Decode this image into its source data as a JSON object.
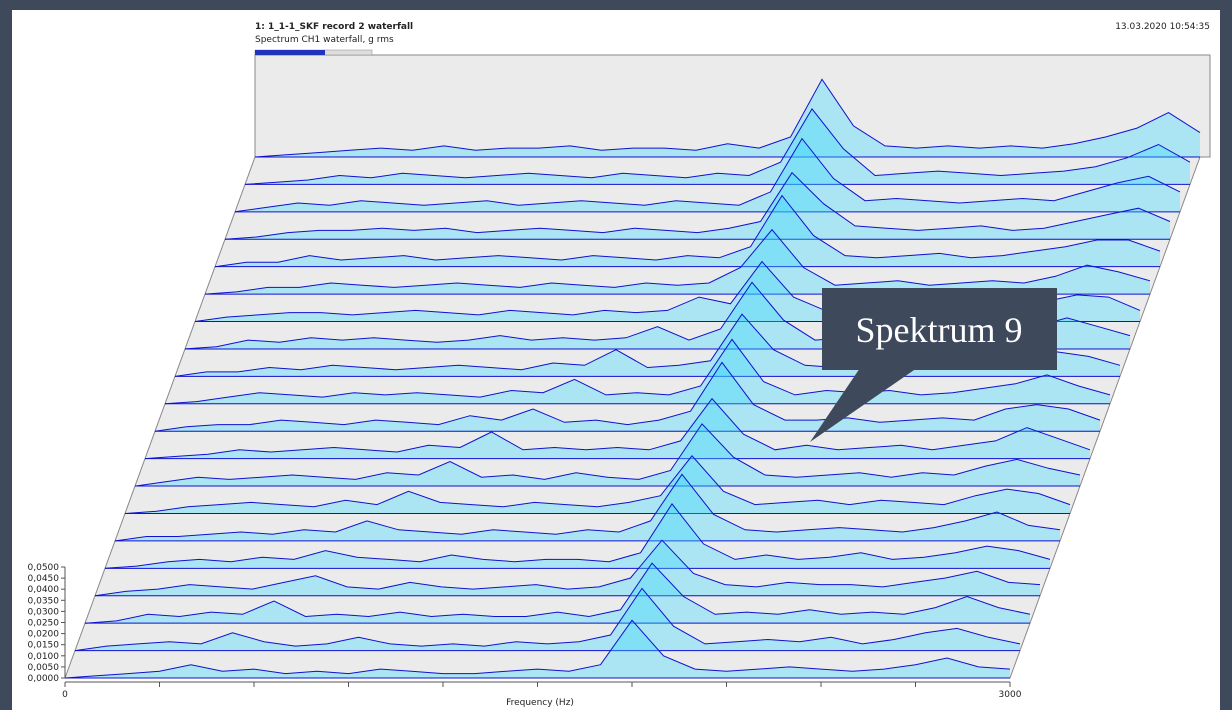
{
  "chart_data": {
    "type": "waterfall",
    "title": "1: 1_1-1_SKF record 2 waterfall",
    "subtitle": "Spectrum CH1 waterfall, g rms",
    "timestamp": "13.03.2020 10:54:35",
    "x_label": "Frequency (Hz)",
    "annotation": "Spektrum 9",
    "x": [
      0,
      100,
      200,
      300,
      400,
      500,
      600,
      700,
      800,
      900,
      1000,
      1100,
      1200,
      1300,
      1400,
      1500,
      1600,
      1700,
      1800,
      1900,
      2000,
      2100,
      2200,
      2300,
      2400,
      2500,
      2600,
      2700,
      2800,
      2900,
      3000
    ],
    "xlim": [
      0,
      3000
    ],
    "xticks": [
      0,
      3000
    ],
    "xticks_minor": [
      300,
      600,
      900,
      1200,
      1500,
      1800,
      2100,
      2400,
      2700
    ],
    "ylim": [
      0,
      0.05
    ],
    "yticks": [
      {
        "value": 0,
        "label": "0,0000"
      },
      {
        "value": 0.005,
        "label": "0,0050"
      },
      {
        "value": 0.01,
        "label": "0,0100"
      },
      {
        "value": 0.015,
        "label": "0,0150"
      },
      {
        "value": 0.02,
        "label": "0,0200"
      },
      {
        "value": 0.025,
        "label": "0,0250"
      },
      {
        "value": 0.03,
        "label": "0,0300"
      },
      {
        "value": 0.035,
        "label": "0,0350"
      },
      {
        "value": 0.04,
        "label": "0,0400"
      },
      {
        "value": 0.045,
        "label": "0,0450"
      },
      {
        "value": 0.05,
        "label": "0,0500"
      }
    ],
    "fill_color": "#33d6ff",
    "series": [
      {
        "color": "#1010d0",
        "values": [
          0,
          0.001,
          0.002,
          0.003,
          0.006,
          0.003,
          0.004,
          0.002,
          0.003,
          0.002,
          0.004,
          0.003,
          0.002,
          0.002,
          0.003,
          0.004,
          0.003,
          0.006,
          0.026,
          0.01,
          0.004,
          0.003,
          0.004,
          0.005,
          0.004,
          0.003,
          0.004,
          0.006,
          0.009,
          0.005,
          0.004
        ]
      },
      {
        "color": "#1010d0",
        "values": [
          0,
          0.002,
          0.003,
          0.004,
          0.003,
          0.008,
          0.004,
          0.002,
          0.003,
          0.006,
          0.003,
          0.002,
          0.003,
          0.002,
          0.004,
          0.003,
          0.004,
          0.007,
          0.028,
          0.011,
          0.003,
          0.004,
          0.005,
          0.004,
          0.006,
          0.003,
          0.005,
          0.008,
          0.01,
          0.006,
          0.003
        ]
      },
      {
        "color": "#1010d0",
        "values": [
          0,
          0.001,
          0.004,
          0.003,
          0.005,
          0.004,
          0.01,
          0.003,
          0.004,
          0.003,
          0.005,
          0.003,
          0.004,
          0.003,
          0.003,
          0.005,
          0.003,
          0.006,
          0.027,
          0.012,
          0.004,
          0.005,
          0.004,
          0.006,
          0.004,
          0.005,
          0.004,
          0.007,
          0.012,
          0.007,
          0.004
        ]
      },
      {
        "color": "#1010d0",
        "values": [
          0,
          0.002,
          0.003,
          0.005,
          0.004,
          0.003,
          0.006,
          0.009,
          0.004,
          0.003,
          0.006,
          0.004,
          0.003,
          0.004,
          0.005,
          0.003,
          0.004,
          0.008,
          0.025,
          0.01,
          0.005,
          0.004,
          0.006,
          0.005,
          0.005,
          0.004,
          0.006,
          0.008,
          0.011,
          0.006,
          0.005
        ]
      },
      {
        "color": "#1010d0",
        "values": [
          0,
          0.001,
          0.003,
          0.004,
          0.003,
          0.005,
          0.004,
          0.008,
          0.005,
          0.004,
          0.003,
          0.006,
          0.004,
          0.003,
          0.004,
          0.004,
          0.003,
          0.007,
          0.029,
          0.011,
          0.004,
          0.006,
          0.004,
          0.005,
          0.007,
          0.004,
          0.005,
          0.007,
          0.01,
          0.008,
          0.004
        ]
      },
      {
        "color": "#1010d0",
        "values": [
          0,
          0.002,
          0.002,
          0.003,
          0.004,
          0.003,
          0.005,
          0.004,
          0.009,
          0.005,
          0.004,
          0.003,
          0.005,
          0.004,
          0.003,
          0.005,
          0.004,
          0.009,
          0.03,
          0.012,
          0.005,
          0.004,
          0.005,
          0.006,
          0.005,
          0.004,
          0.006,
          0.009,
          0.013,
          0.007,
          0.005
        ]
      },
      {
        "color": "#1010d0",
        "values": [
          0,
          0.001,
          0.003,
          0.004,
          0.005,
          0.004,
          0.003,
          0.006,
          0.004,
          0.01,
          0.005,
          0.004,
          0.003,
          0.005,
          0.004,
          0.003,
          0.005,
          0.008,
          0.026,
          0.01,
          0.004,
          0.005,
          0.006,
          0.004,
          0.006,
          0.005,
          0.004,
          0.008,
          0.011,
          0.009,
          0.004
        ]
      },
      {
        "color": "#1010d0",
        "values": [
          0,
          0.002,
          0.004,
          0.003,
          0.004,
          0.005,
          0.004,
          0.003,
          0.006,
          0.005,
          0.011,
          0.004,
          0.005,
          0.003,
          0.006,
          0.004,
          0.003,
          0.007,
          0.028,
          0.013,
          0.005,
          0.004,
          0.005,
          0.006,
          0.004,
          0.006,
          0.005,
          0.009,
          0.012,
          0.008,
          0.005
        ]
      },
      {
        "color": "#1010d0",
        "values": [
          0,
          0.001,
          0.002,
          0.004,
          0.003,
          0.004,
          0.005,
          0.004,
          0.003,
          0.006,
          0.005,
          0.012,
          0.004,
          0.005,
          0.004,
          0.005,
          0.004,
          0.008,
          0.027,
          0.011,
          0.004,
          0.006,
          0.004,
          0.005,
          0.006,
          0.004,
          0.006,
          0.008,
          0.014,
          0.009,
          0.004
        ]
      },
      {
        "color": "#1010d0",
        "values": [
          0,
          0.002,
          0.003,
          0.003,
          0.005,
          0.004,
          0.003,
          0.005,
          0.004,
          0.003,
          0.007,
          0.005,
          0.01,
          0.004,
          0.005,
          0.003,
          0.005,
          0.009,
          0.031,
          0.012,
          0.005,
          0.005,
          0.006,
          0.004,
          0.005,
          0.006,
          0.005,
          0.01,
          0.012,
          0.01,
          0.005
        ]
      },
      {
        "color": "#1010d0",
        "values": [
          0,
          0.001,
          0.003,
          0.005,
          0.004,
          0.003,
          0.005,
          0.004,
          0.005,
          0.004,
          0.003,
          0.006,
          0.005,
          0.011,
          0.004,
          0.005,
          0.004,
          0.008,
          0.029,
          0.01,
          0.004,
          0.006,
          0.005,
          0.006,
          0.004,
          0.005,
          0.007,
          0.009,
          0.013,
          0.008,
          0.004
        ]
      },
      {
        "color": "#1010d0",
        "values": [
          0,
          0.002,
          0.002,
          0.004,
          0.003,
          0.005,
          0.004,
          0.003,
          0.004,
          0.005,
          0.004,
          0.003,
          0.006,
          0.005,
          0.012,
          0.004,
          0.005,
          0.007,
          0.028,
          0.012,
          0.005,
          0.004,
          0.006,
          0.005,
          0.006,
          0.004,
          0.006,
          0.008,
          0.011,
          0.009,
          0.005
        ]
      },
      {
        "color": "#1010d0",
        "values": [
          0,
          0.001,
          0.004,
          0.003,
          0.005,
          0.004,
          0.005,
          0.004,
          0.003,
          0.004,
          0.006,
          0.004,
          0.005,
          0.004,
          0.005,
          0.01,
          0.004,
          0.009,
          0.03,
          0.013,
          0.004,
          0.005,
          0.005,
          0.006,
          0.005,
          0.007,
          0.005,
          0.01,
          0.014,
          0.01,
          0.006
        ]
      },
      {
        "color": "#1010d0",
        "values": [
          0,
          0.002,
          0.003,
          0.004,
          0.004,
          0.003,
          0.004,
          0.005,
          0.004,
          0.003,
          0.005,
          0.004,
          0.003,
          0.005,
          0.004,
          0.005,
          0.011,
          0.008,
          0.027,
          0.011,
          0.005,
          0.006,
          0.004,
          0.005,
          0.006,
          0.005,
          0.006,
          0.009,
          0.012,
          0.011,
          0.005
        ]
      },
      {
        "color": "#1010d0",
        "values": [
          0,
          0.001,
          0.003,
          0.003,
          0.005,
          0.004,
          0.003,
          0.004,
          0.005,
          0.004,
          0.003,
          0.005,
          0.004,
          0.003,
          0.005,
          0.004,
          0.005,
          0.012,
          0.029,
          0.012,
          0.004,
          0.005,
          0.006,
          0.004,
          0.005,
          0.006,
          0.005,
          0.008,
          0.013,
          0.01,
          0.006
        ]
      },
      {
        "color": "#1010d0",
        "values": [
          0,
          0.002,
          0.002,
          0.005,
          0.003,
          0.004,
          0.005,
          0.003,
          0.004,
          0.005,
          0.004,
          0.003,
          0.005,
          0.004,
          0.003,
          0.005,
          0.004,
          0.009,
          0.032,
          0.014,
          0.005,
          0.004,
          0.005,
          0.006,
          0.004,
          0.005,
          0.007,
          0.009,
          0.012,
          0.012,
          0.007
        ]
      },
      {
        "color": "#1010d0",
        "values": [
          0,
          0.001,
          0.003,
          0.004,
          0.004,
          0.005,
          0.004,
          0.005,
          0.003,
          0.004,
          0.005,
          0.004,
          0.003,
          0.005,
          0.004,
          0.003,
          0.005,
          0.008,
          0.03,
          0.016,
          0.006,
          0.005,
          0.004,
          0.005,
          0.006,
          0.004,
          0.005,
          0.008,
          0.011,
          0.014,
          0.008
        ]
      },
      {
        "color": "#1010d0",
        "values": [
          0,
          0.002,
          0.004,
          0.003,
          0.005,
          0.004,
          0.003,
          0.004,
          0.005,
          0.003,
          0.004,
          0.005,
          0.004,
          0.003,
          0.005,
          0.004,
          0.003,
          0.009,
          0.033,
          0.015,
          0.005,
          0.006,
          0.005,
          0.004,
          0.005,
          0.006,
          0.005,
          0.009,
          0.013,
          0.016,
          0.009
        ]
      },
      {
        "color": "#1010d0",
        "values": [
          0,
          0.001,
          0.002,
          0.004,
          0.003,
          0.005,
          0.004,
          0.003,
          0.004,
          0.005,
          0.004,
          0.003,
          0.005,
          0.004,
          0.003,
          0.005,
          0.004,
          0.01,
          0.034,
          0.016,
          0.004,
          0.005,
          0.006,
          0.005,
          0.004,
          0.005,
          0.006,
          0.008,
          0.012,
          0.018,
          0.01
        ]
      },
      {
        "color": "#1010d0",
        "values": [
          0,
          0.001,
          0.002,
          0.003,
          0.004,
          0.003,
          0.005,
          0.003,
          0.004,
          0.004,
          0.005,
          0.003,
          0.004,
          0.004,
          0.003,
          0.006,
          0.004,
          0.009,
          0.035,
          0.014,
          0.005,
          0.004,
          0.005,
          0.004,
          0.005,
          0.004,
          0.006,
          0.009,
          0.013,
          0.02,
          0.011
        ]
      }
    ]
  }
}
